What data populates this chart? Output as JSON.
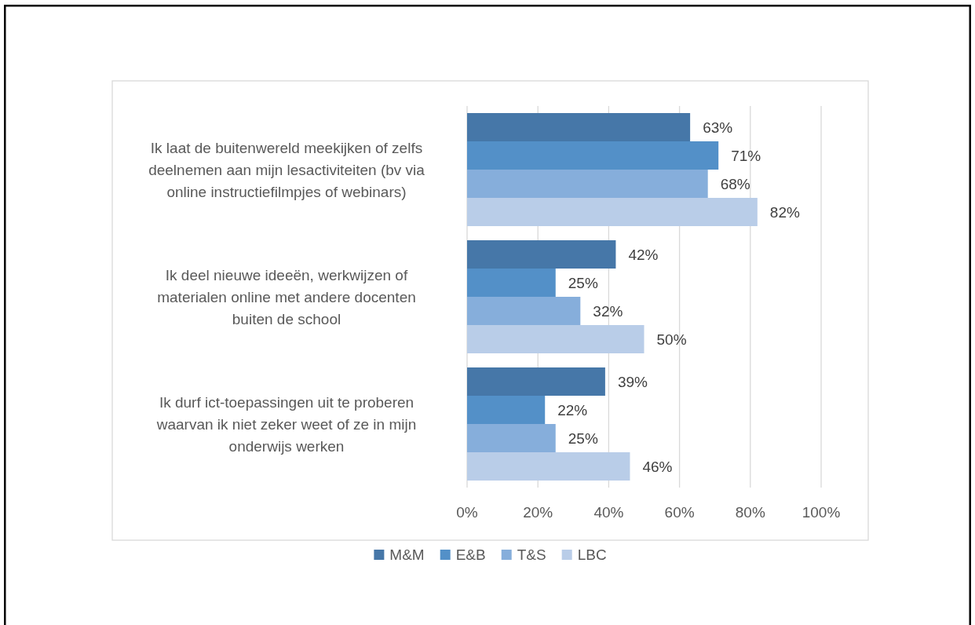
{
  "chart_data": {
    "type": "bar",
    "orientation": "horizontal",
    "categories": [
      "Ik laat de buitenwereld meekijken of zelfs deelnemen aan mijn lesactiviteiten (bv via online instructiefilmpjes of webinars)",
      "Ik deel nieuwe ideeën, werkwijzen of materialen online met andere docenten buiten de school",
      "Ik durf ict-toepassingen uit te proberen waarvan ik niet zeker weet of ze in mijn onderwijs werken"
    ],
    "series": [
      {
        "name": "M&M",
        "color": "#4677a8",
        "values": [
          63,
          42,
          39
        ],
        "value_labels": [
          "63%",
          "42%",
          "39%"
        ]
      },
      {
        "name": "E&B",
        "color": "#5390c8",
        "values": [
          71,
          25,
          22
        ],
        "value_labels": [
          "71%",
          "25%",
          "22%"
        ]
      },
      {
        "name": "T&S",
        "color": "#86aedb",
        "values": [
          68,
          32,
          25
        ],
        "value_labels": [
          "68%",
          "32%",
          "25%"
        ]
      },
      {
        "name": "LBC",
        "color": "#b9cde8",
        "values": [
          82,
          50,
          46
        ],
        "value_labels": [
          "82%",
          "50%",
          "46%"
        ]
      }
    ],
    "xlim": [
      0,
      100
    ],
    "xticks": [
      {
        "value": 0,
        "label": "0%"
      },
      {
        "value": 20,
        "label": "20%"
      },
      {
        "value": 40,
        "label": "40%"
      },
      {
        "value": 60,
        "label": "60%"
      },
      {
        "value": 80,
        "label": "80%"
      },
      {
        "value": 100,
        "label": "100%"
      }
    ],
    "grid": "x",
    "legend": "bottom"
  }
}
